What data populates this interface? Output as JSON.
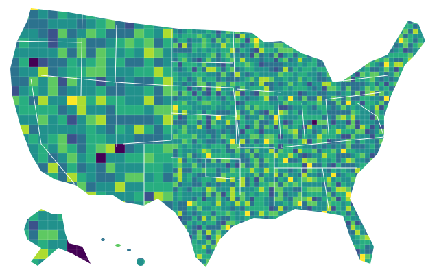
{
  "map": {
    "type": "choropleth",
    "geography": "us-counties",
    "background": "#ffffff",
    "border_color": "#ffffff",
    "color_scale": [
      "#440154",
      "#3b528b",
      "#2c728e",
      "#21918c",
      "#28ae80",
      "#5ec962",
      "#addc30",
      "#fde725"
    ],
    "base_color": "#21918c"
  }
}
